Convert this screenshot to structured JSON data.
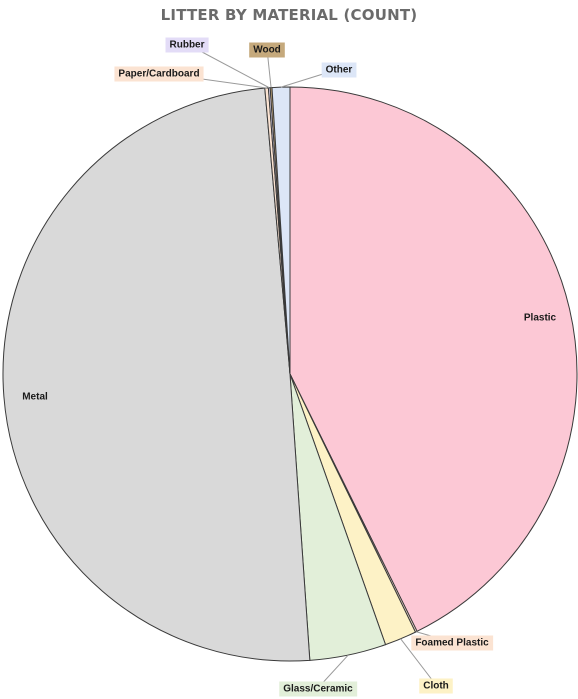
{
  "chart_data": {
    "type": "pie",
    "title": "LITTER BY MATERIAL (COUNT)",
    "start_angle_deg": 0,
    "direction": "clockwise",
    "slices": [
      {
        "label": "Plastic",
        "value": 42.7,
        "color": "#fcc8d5",
        "label_box": false,
        "label_color": ""
      },
      {
        "label": "Foamed Plastic",
        "value": 0.1,
        "color": "#fbe3d2",
        "label_box": true,
        "label_color": "#fbe3d2"
      },
      {
        "label": "Cloth",
        "value": 1.8,
        "color": "#fdf2c6",
        "label_box": true,
        "label_color": "#fdf2c6"
      },
      {
        "label": "Glass/Ceramic",
        "value": 4.3,
        "color": "#e2efd9",
        "label_box": true,
        "label_color": "#e2efd9"
      },
      {
        "label": "Metal",
        "value": 49.7,
        "color": "#d9d9d9",
        "label_box": false,
        "label_color": ""
      },
      {
        "label": "Paper/Cardboard",
        "value": 0.2,
        "color": "#fbe3d2",
        "label_box": true,
        "label_color": "#fbe3d2"
      },
      {
        "label": "Rubber",
        "value": 0.1,
        "color": "#e3dcf7",
        "label_box": true,
        "label_color": "#e3dcf7"
      },
      {
        "label": "Wood",
        "value": 0.1,
        "color": "#c5a97c",
        "label_box": true,
        "label_color": "#c5a97c"
      },
      {
        "label": "Other",
        "value": 1.0,
        "color": "#dce6f7",
        "label_box": true,
        "label_color": "#dce6f7"
      }
    ]
  }
}
